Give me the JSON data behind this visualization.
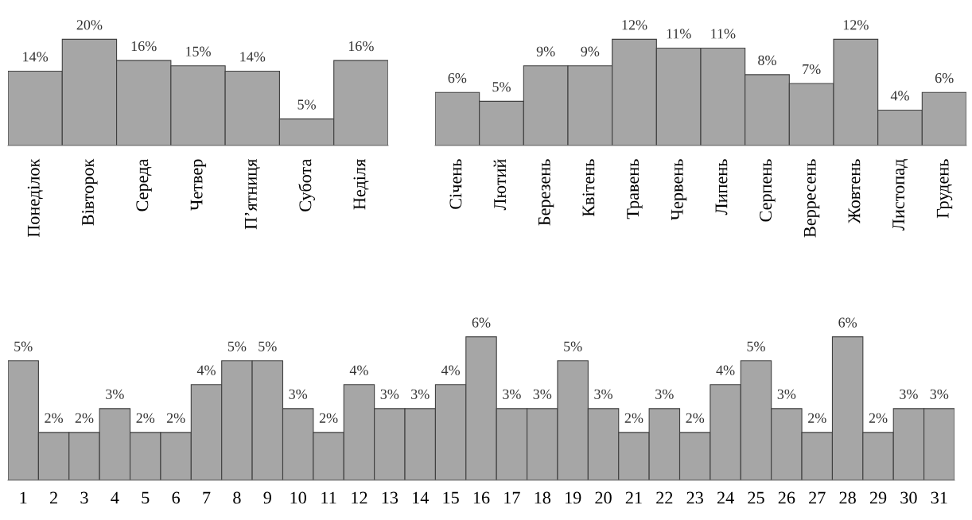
{
  "chart_data": [
    {
      "type": "bar",
      "categories": [
        "Понеділок",
        "Вівторок",
        "Середа",
        "Четвер",
        "П’ятниця",
        "Субота",
        "Неділя"
      ],
      "values": [
        14,
        20,
        16,
        15,
        14,
        5,
        16
      ],
      "value_labels": [
        "14%",
        "20%",
        "16%",
        "15%",
        "14%",
        "5%",
        "16%"
      ],
      "color": "#a6a6a6"
    },
    {
      "type": "bar",
      "categories": [
        "Січень",
        "Лютий",
        "Березень",
        "Квітень",
        "Травень",
        "Червень",
        "Липень",
        "Серпень",
        "Верресень",
        "Жовтень",
        "Листопад",
        "Грудень"
      ],
      "values": [
        6,
        5,
        9,
        9,
        12,
        11,
        11,
        8,
        7,
        12,
        4,
        6
      ],
      "value_labels": [
        "6%",
        "5%",
        "9%",
        "9%",
        "12%",
        "11%",
        "11%",
        "8%",
        "7%",
        "12%",
        "4%",
        "6%"
      ],
      "color": "#a6a6a6"
    },
    {
      "type": "bar",
      "categories": [
        "1",
        "2",
        "3",
        "4",
        "5",
        "6",
        "7",
        "8",
        "9",
        "10",
        "11",
        "12",
        "13",
        "14",
        "15",
        "16",
        "17",
        "18",
        "19",
        "20",
        "21",
        "22",
        "23",
        "24",
        "25",
        "26",
        "27",
        "28",
        "29",
        "30",
        "31"
      ],
      "values": [
        5,
        2,
        2,
        3,
        2,
        2,
        4,
        5,
        5,
        3,
        2,
        4,
        3,
        3,
        4,
        6,
        3,
        3,
        5,
        3,
        2,
        3,
        2,
        4,
        5,
        3,
        2,
        6,
        2,
        3,
        3
      ],
      "value_labels": [
        "5%",
        "2%",
        "2%",
        "3%",
        "2%",
        "2%",
        "4%",
        "5%",
        "5%",
        "3%",
        "2%",
        "4%",
        "3%",
        "3%",
        "4%",
        "6%",
        "3%",
        "3%",
        "5%",
        "3%",
        "2%",
        "3%",
        "2%",
        "4%",
        "5%",
        "3%",
        "2%",
        "6%",
        "2%",
        "3%",
        "3%"
      ],
      "color": "#a6a6a6"
    }
  ]
}
